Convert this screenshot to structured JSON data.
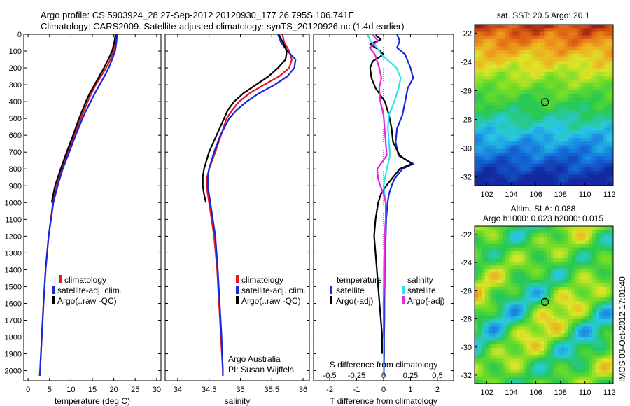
{
  "title": {
    "line1": "Argo profile: CS 5903924_28 27-Sep-2012 20120930_177 26.795S 106.741E",
    "line2": "Climatology: CARS2009. Satellite-adjusted climatology: synTS_20120926.nc (1.4d earlier)"
  },
  "sidebar_text": "IMOS 03-Oct-2012 17:01:40",
  "colors": {
    "red": "#e8141e",
    "blue": "#1428dc",
    "black": "#000000",
    "cyan": "#28e4f0",
    "magenta": "#e628e6"
  },
  "chart_data": [
    {
      "type": "line",
      "panel": "temperature",
      "xlabel": "temperature (deg C)",
      "ylabel": "",
      "xlim": [
        -1,
        31
      ],
      "ylim": [
        2060,
        0
      ],
      "xticks": [
        0,
        5,
        10,
        15,
        20,
        25,
        30
      ],
      "yticks": [
        0,
        100,
        200,
        300,
        400,
        500,
        600,
        700,
        800,
        900,
        1000,
        1100,
        1200,
        1300,
        1400,
        1500,
        1600,
        1700,
        1800,
        1900,
        2000
      ],
      "legend": [
        "climatology",
        "satellite-adj. clim.",
        "Argo(..raw -QC)"
      ],
      "series": [
        {
          "name": "climatology",
          "color": "red",
          "depth": [
            0,
            50,
            100,
            150,
            200,
            250,
            300,
            350,
            400,
            450,
            500,
            600,
            700,
            800,
            900,
            1000,
            1200,
            1400,
            1600,
            1800,
            2000,
            2030
          ],
          "values": [
            20.5,
            20.3,
            20,
            19.2,
            18.2,
            17,
            15.8,
            14.8,
            13.9,
            13.1,
            12.3,
            10.8,
            9.3,
            7.9,
            6.7,
            5.8,
            4.8,
            4.1,
            3.6,
            3.2,
            2.8,
            2.7
          ]
        },
        {
          "name": "satellite-adj. clim.",
          "color": "blue",
          "depth": [
            0,
            50,
            100,
            150,
            200,
            250,
            300,
            350,
            400,
            450,
            500,
            600,
            700,
            800,
            900,
            1000,
            1200,
            1400,
            1600,
            1800,
            2000,
            2030
          ],
          "values": [
            20.8,
            20.6,
            20.3,
            19.6,
            18.8,
            17.8,
            16.7,
            15.6,
            14.6,
            13.6,
            12.7,
            11.1,
            9.6,
            8.1,
            6.9,
            5.9,
            4.8,
            4.1,
            3.6,
            3.2,
            2.8,
            2.7
          ]
        },
        {
          "name": "Argo(..raw -QC)",
          "color": "black",
          "depth": [
            5,
            50,
            100,
            150,
            200,
            250,
            300,
            350,
            400,
            450,
            500,
            600,
            700,
            800,
            900,
            1000
          ],
          "values": [
            20.4,
            20.1,
            19.6,
            18.7,
            17.7,
            16.6,
            15.5,
            14.4,
            13.5,
            12.7,
            11.9,
            10.5,
            9,
            7.6,
            6.3,
            5.5
          ]
        }
      ]
    },
    {
      "type": "line",
      "panel": "salinity",
      "xlabel": "salinity",
      "ylabel": "",
      "xlim": [
        33.8,
        36.1
      ],
      "ylim": [
        2060,
        0
      ],
      "xticks": [
        34,
        34.5,
        35,
        35.5,
        36
      ],
      "legend": [
        "climatology",
        "satellite-adj. clim.",
        "Argo(..raw -QC)"
      ],
      "annotation": {
        "line1": "Argo Australia",
        "line2": "PI: Susan Wijffels"
      },
      "series": [
        {
          "name": "climatology",
          "color": "red",
          "depth": [
            0,
            50,
            100,
            150,
            200,
            250,
            300,
            350,
            400,
            450,
            500,
            600,
            700,
            800,
            850,
            900,
            1000,
            1200,
            1400,
            1600,
            1800,
            2000,
            2030
          ],
          "values": [
            35.67,
            35.7,
            35.78,
            35.82,
            35.78,
            35.62,
            35.38,
            35.15,
            34.98,
            34.87,
            34.78,
            34.69,
            34.6,
            34.5,
            34.47,
            34.46,
            34.5,
            34.58,
            34.63,
            34.66,
            34.69,
            34.72,
            34.72
          ]
        },
        {
          "name": "satellite-adj. clim.",
          "color": "blue",
          "depth": [
            0,
            50,
            100,
            150,
            200,
            250,
            300,
            350,
            400,
            450,
            500,
            600,
            700,
            800,
            850,
            900,
            1000,
            1200,
            1400,
            1600,
            1800,
            2000,
            2030
          ],
          "values": [
            35.6,
            35.65,
            35.75,
            35.88,
            35.86,
            35.75,
            35.55,
            35.3,
            35.1,
            34.94,
            34.82,
            34.68,
            34.58,
            34.5,
            34.48,
            34.48,
            34.52,
            34.6,
            34.64,
            34.67,
            34.7,
            34.72,
            34.72
          ]
        },
        {
          "name": "Argo(..raw -QC)",
          "color": "black",
          "depth": [
            5,
            50,
            100,
            150,
            200,
            250,
            300,
            350,
            400,
            450,
            500,
            600,
            700,
            800,
            850,
            900,
            950,
            1000
          ],
          "values": [
            35.62,
            35.68,
            35.74,
            35.72,
            35.6,
            35.45,
            35.25,
            35.05,
            34.9,
            34.8,
            34.74,
            34.62,
            34.5,
            34.42,
            34.4,
            34.4,
            34.42,
            34.45
          ]
        }
      ]
    },
    {
      "type": "line",
      "panel": "difference",
      "xlabel": "T difference from climatology",
      "xlabel_top": "S difference from climatology",
      "xlim": [
        -2.6,
        2.6
      ],
      "ylim": [
        2060,
        0
      ],
      "xticks": [
        -2,
        -1,
        0,
        1,
        2
      ],
      "xticks_s": [
        -0.5,
        -0.25,
        0,
        0.25,
        0.5
      ],
      "legend_headers": [
        "temperature",
        "salinity"
      ],
      "legend": [
        "satellite",
        "Argo(-adj)",
        "satellite",
        "Argo(-adj)"
      ],
      "series": [
        {
          "name": "satellite",
          "group": "temperature",
          "color": "blue",
          "depth": [
            0,
            40,
            80,
            120,
            160,
            200,
            260,
            320,
            400,
            480,
            560,
            640,
            720,
            770,
            800,
            860,
            900,
            950,
            1000,
            1100,
            1200,
            1300,
            1400,
            1500,
            1600,
            1700,
            1800,
            1900,
            2000,
            2030
          ],
          "values": [
            0.5,
            0.6,
            0.5,
            0.8,
            0.9,
            1.0,
            1.1,
            0.9,
            0.8,
            0.7,
            0.5,
            0.45,
            0.55,
            1.1,
            0.7,
            0.4,
            0.3,
            0.2,
            0.15,
            0.1,
            0.08,
            0.06,
            0.05,
            0.04,
            0.03,
            0.03,
            0.02,
            0.02,
            0.01,
            0.01
          ]
        },
        {
          "name": "Argo(-adj)",
          "group": "temperature",
          "color": "black",
          "depth": [
            5,
            30,
            60,
            90,
            120,
            160,
            200,
            260,
            320,
            400,
            480,
            560,
            640,
            720,
            770,
            800,
            860,
            900,
            950,
            1000,
            1100,
            1200,
            1300,
            1400,
            1500,
            1600,
            1700,
            1800,
            1900
          ],
          "values": [
            -0.3,
            -0.1,
            -0.5,
            -0.2,
            0.0,
            -0.4,
            -0.5,
            -0.45,
            -0.3,
            0.05,
            0.2,
            0.3,
            0.35,
            0.6,
            1.05,
            0.6,
            0.3,
            0.1,
            -0.1,
            -0.2,
            -0.3,
            -0.35,
            -0.3,
            -0.25,
            -0.2,
            -0.15,
            -0.1,
            -0.05,
            -0.05
          ]
        },
        {
          "name": "satellite",
          "group": "salinity",
          "color": "cyan",
          "depth": [
            0,
            40,
            80,
            120,
            160,
            200,
            260,
            320,
            400,
            480,
            560,
            640,
            720,
            800,
            900,
            1000,
            1100,
            1200,
            1400,
            1600,
            1800,
            2000,
            2030
          ],
          "values": [
            -0.15,
            -0.12,
            -0.06,
            -0.02,
            0.05,
            0.12,
            0.16,
            0.14,
            0.1,
            0.05,
            0.04,
            0.05,
            0.06,
            0.03,
            0.0,
            0.02,
            0.02,
            0.01,
            0.0,
            0.0,
            0.0,
            0.0,
            0.0
          ]
        },
        {
          "name": "Argo(-adj)",
          "group": "salinity",
          "color": "magenta",
          "depth": [
            5,
            40,
            80,
            120,
            160,
            200,
            260,
            320,
            400,
            480,
            560,
            640,
            720,
            800,
            860,
            900,
            950,
            1000,
            1100,
            1200,
            1400,
            1600,
            1800
          ],
          "values": [
            -0.1,
            -0.05,
            -0.13,
            -0.08,
            -0.06,
            -0.04,
            -0.02,
            -0.04,
            -0.03,
            0.0,
            0.01,
            0.02,
            0.03,
            -0.06,
            -0.05,
            -0.03,
            0.0,
            0.02,
            0.02,
            0.01,
            0.01,
            0.0,
            0.0
          ]
        }
      ]
    },
    {
      "type": "heatmap",
      "panel": "sst-map",
      "title": "sat. SST: 20.5  Argo: 20.1",
      "xlim": [
        101,
        112.3
      ],
      "ylim": [
        -32.6,
        -21.4
      ],
      "xticks": [
        102,
        104,
        106,
        108,
        110,
        112
      ],
      "yticks": [
        -22,
        -24,
        -26,
        -28,
        -30,
        -32
      ],
      "marker": {
        "lon": 106.741,
        "lat": -26.795
      }
    },
    {
      "type": "heatmap",
      "panel": "sla-map",
      "title": "Altim. SLA: 0.088",
      "subtitle": "Argo h1000: 0.023 h2000: 0.015",
      "xlim": [
        101,
        112.3
      ],
      "ylim": [
        -32.6,
        -21.4
      ],
      "xticks": [
        102,
        104,
        106,
        108,
        110,
        112
      ],
      "yticks": [
        -22,
        -24,
        -26,
        -28,
        -30,
        -32
      ],
      "marker": {
        "lon": 106.741,
        "lat": -26.795
      }
    }
  ]
}
